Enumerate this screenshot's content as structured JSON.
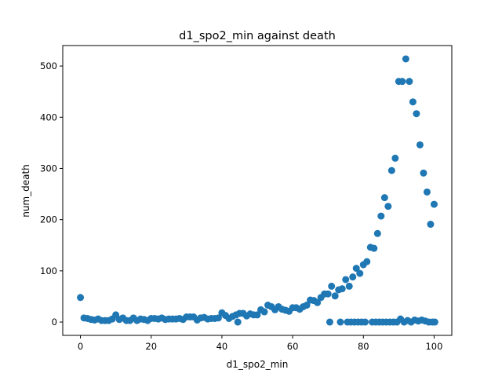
{
  "chart_data": {
    "type": "scatter",
    "title": "d1_spo2_min against death",
    "xlabel": "d1_spo2_min",
    "ylabel": "num_death",
    "xlim": [
      -5,
      105
    ],
    "ylim": [
      -26,
      540
    ],
    "xticks": [
      0,
      20,
      40,
      60,
      80,
      100
    ],
    "yticks": [
      0,
      100,
      200,
      300,
      400,
      500
    ],
    "grid": false,
    "marker_color": "#1f77b4",
    "series": [
      {
        "points": [
          [
            0,
            48
          ],
          [
            1,
            8
          ],
          [
            2,
            7
          ],
          [
            3,
            5
          ],
          [
            4,
            4
          ],
          [
            5,
            6
          ],
          [
            6,
            3
          ],
          [
            7,
            3
          ],
          [
            8,
            3
          ],
          [
            9,
            6
          ],
          [
            10,
            14
          ],
          [
            11,
            5
          ],
          [
            12,
            8
          ],
          [
            13,
            3
          ],
          [
            14,
            3
          ],
          [
            15,
            8
          ],
          [
            16,
            3
          ],
          [
            17,
            6
          ],
          [
            18,
            5
          ],
          [
            19,
            3
          ],
          [
            20,
            7
          ],
          [
            21,
            7
          ],
          [
            22,
            6
          ],
          [
            23,
            8
          ],
          [
            24,
            5
          ],
          [
            25,
            6
          ],
          [
            26,
            6
          ],
          [
            27,
            6
          ],
          [
            28,
            7
          ],
          [
            29,
            5
          ],
          [
            30,
            10
          ],
          [
            31,
            10
          ],
          [
            32,
            10
          ],
          [
            33,
            4
          ],
          [
            34,
            8
          ],
          [
            35,
            9
          ],
          [
            36,
            6
          ],
          [
            37,
            7
          ],
          [
            38,
            7
          ],
          [
            39,
            8
          ],
          [
            40,
            18
          ],
          [
            41,
            13
          ],
          [
            42,
            7
          ],
          [
            43,
            11
          ],
          [
            44,
            14
          ],
          [
            44.5,
            0
          ],
          [
            45,
            17
          ],
          [
            46,
            17
          ],
          [
            47,
            12
          ],
          [
            48,
            16
          ],
          [
            49,
            14
          ],
          [
            50,
            14
          ],
          [
            51,
            24
          ],
          [
            52,
            20
          ],
          [
            53,
            33
          ],
          [
            54,
            30
          ],
          [
            55,
            24
          ],
          [
            56,
            30
          ],
          [
            57,
            25
          ],
          [
            58,
            23
          ],
          [
            59,
            21
          ],
          [
            60,
            28
          ],
          [
            61,
            28
          ],
          [
            62,
            25
          ],
          [
            63,
            30
          ],
          [
            64,
            33
          ],
          [
            65,
            43
          ],
          [
            66,
            42
          ],
          [
            67,
            38
          ],
          [
            68,
            48
          ],
          [
            69,
            55
          ],
          [
            70,
            55
          ],
          [
            70.5,
            0
          ],
          [
            71,
            70
          ],
          [
            72,
            51
          ],
          [
            73,
            63
          ],
          [
            73.5,
            0
          ],
          [
            74,
            65
          ],
          [
            75,
            83
          ],
          [
            75.5,
            0
          ],
          [
            76,
            70
          ],
          [
            76.5,
            0
          ],
          [
            77,
            88
          ],
          [
            77.5,
            0
          ],
          [
            78,
            105
          ],
          [
            78.5,
            0
          ],
          [
            79,
            95
          ],
          [
            79.5,
            0
          ],
          [
            80,
            112
          ],
          [
            80.5,
            0
          ],
          [
            81,
            118
          ],
          [
            82,
            146
          ],
          [
            82.5,
            0
          ],
          [
            83,
            144
          ],
          [
            83.5,
            0
          ],
          [
            84,
            173
          ],
          [
            84.5,
            0
          ],
          [
            85,
            207
          ],
          [
            85.5,
            0
          ],
          [
            86,
            243
          ],
          [
            86.5,
            0
          ],
          [
            87,
            226
          ],
          [
            87.5,
            0
          ],
          [
            88,
            296
          ],
          [
            88.5,
            0
          ],
          [
            89,
            320
          ],
          [
            89.5,
            0
          ],
          [
            90,
            470
          ],
          [
            90.5,
            6
          ],
          [
            91,
            470
          ],
          [
            91.5,
            0
          ],
          [
            92,
            514
          ],
          [
            92.5,
            3
          ],
          [
            93,
            470
          ],
          [
            93.5,
            0
          ],
          [
            94,
            430
          ],
          [
            94.5,
            4
          ],
          [
            95,
            407
          ],
          [
            95.5,
            2
          ],
          [
            96,
            346
          ],
          [
            96.5,
            4
          ],
          [
            97,
            291
          ],
          [
            97.5,
            2
          ],
          [
            98,
            254
          ],
          [
            98.5,
            0
          ],
          [
            99,
            191
          ],
          [
            99.5,
            0
          ],
          [
            100,
            230
          ],
          [
            100.2,
            0
          ]
        ]
      }
    ]
  }
}
